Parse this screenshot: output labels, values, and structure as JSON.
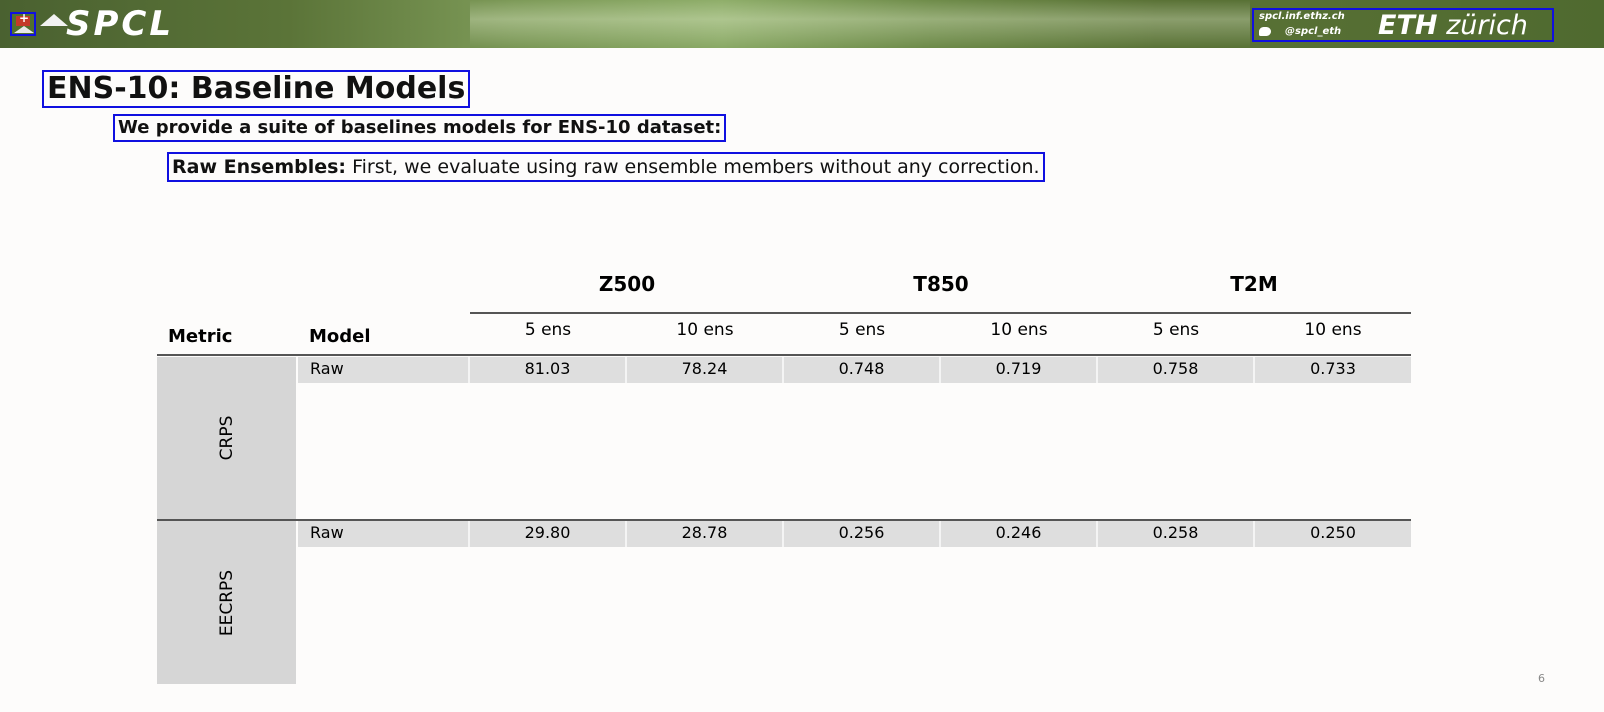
{
  "header": {
    "logo_text": "SPCL",
    "url": "spcl.inf.ethz.ch",
    "twitter": "@spcl_eth",
    "eth_bold": "ETH",
    "eth_light": "zürich"
  },
  "slide": {
    "title": "ENS-10: Baseline Models",
    "bullet1": "We provide a suite of baselines models for ENS-10 dataset:",
    "bullet2_bold": "Raw Ensembles:",
    "bullet2_text": " First, we evaluate using raw ensemble members without any correction.",
    "page_number": "6"
  },
  "table": {
    "col_metric": "Metric",
    "col_model": "Model",
    "groups": [
      "Z500",
      "T850",
      "T2M"
    ],
    "subcols": [
      "5 ens",
      "10 ens",
      "5 ens",
      "10 ens",
      "5 ens",
      "10 ens"
    ],
    "rows": [
      {
        "metric": "CRPS",
        "model": "Raw",
        "values": [
          "81.03",
          "78.24",
          "0.748",
          "0.719",
          "0.758",
          "0.733"
        ]
      },
      {
        "metric": "EECRPS",
        "model": "Raw",
        "values": [
          "29.80",
          "28.78",
          "0.256",
          "0.246",
          "0.258",
          "0.250"
        ]
      }
    ]
  },
  "colors": {
    "highlight_box": "#1010e0",
    "banner_green": "#5b7438",
    "metric_bg": "#d6d6d6"
  }
}
